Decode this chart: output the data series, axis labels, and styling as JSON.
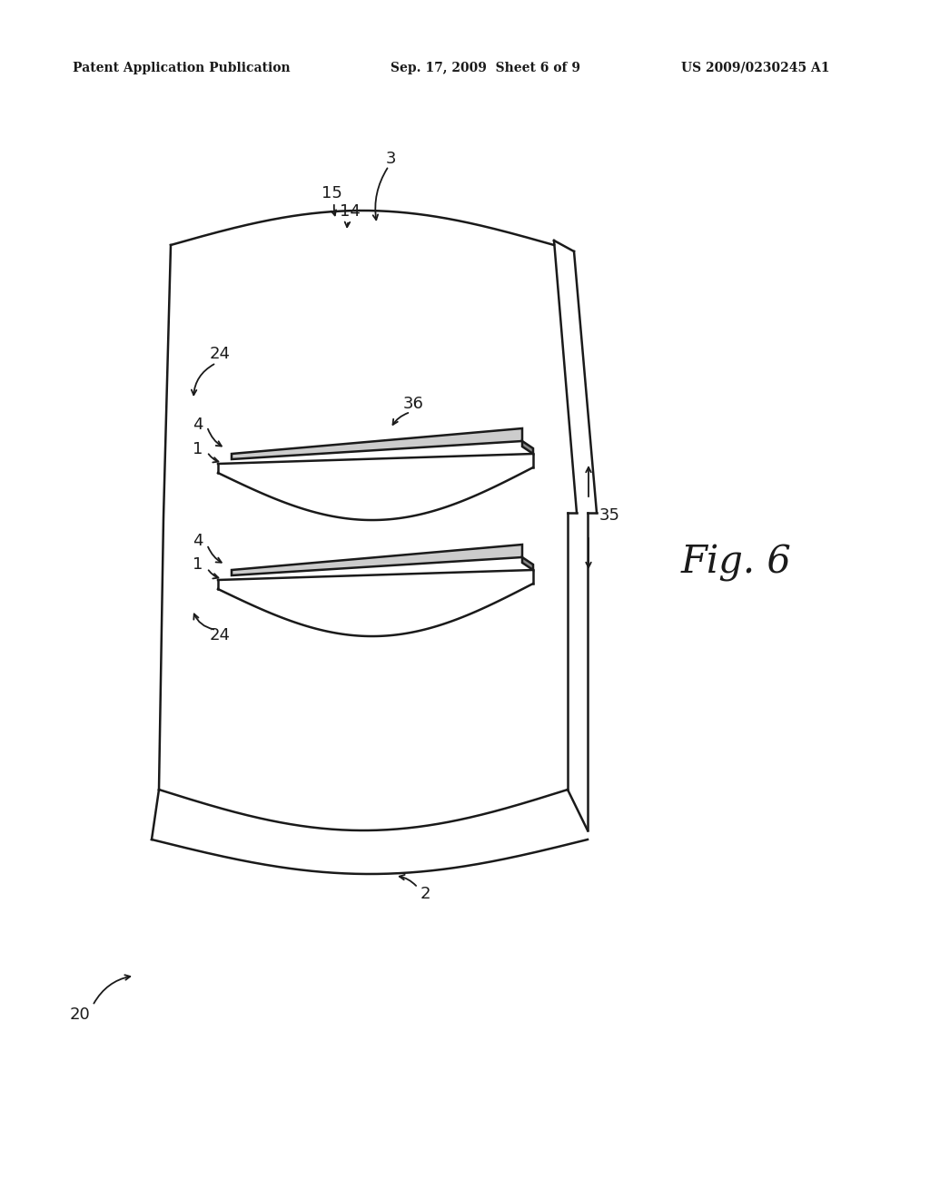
{
  "bg_color": "#ffffff",
  "line_color": "#1a1a1a",
  "header_left": "Patent Application Publication",
  "header_mid": "Sep. 17, 2009  Sheet 6 of 9",
  "header_right": "US 2009/0230245 A1",
  "fig_label": "Fig. 6"
}
